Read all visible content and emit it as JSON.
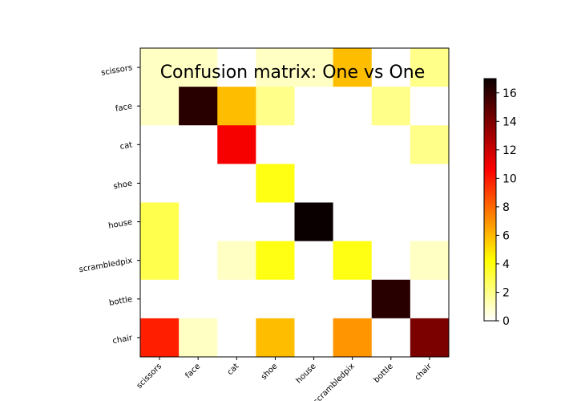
{
  "chart_data": {
    "type": "heatmap",
    "title": "Confusion matrix: One vs One",
    "colormap": "hot_r",
    "row_labels": [
      "scissors",
      "face",
      "cat",
      "shoe",
      "house",
      "scrambledpix",
      "bottle",
      "chair"
    ],
    "col_labels": [
      "scissors",
      "face",
      "cat",
      "shoe",
      "house",
      "scrambledpix",
      "bottle",
      "chair"
    ],
    "matrix": [
      [
        1,
        1,
        0,
        1,
        1,
        6,
        0,
        2
      ],
      [
        1,
        16,
        6,
        2,
        0,
        0,
        2,
        0
      ],
      [
        0,
        0,
        11,
        0,
        0,
        0,
        0,
        2
      ],
      [
        0,
        0,
        0,
        4,
        0,
        0,
        0,
        0
      ],
      [
        3,
        0,
        0,
        0,
        17,
        0,
        0,
        0
      ],
      [
        3,
        0,
        1,
        4,
        0,
        4,
        0,
        1
      ],
      [
        0,
        0,
        0,
        0,
        0,
        0,
        16,
        0
      ],
      [
        10,
        1,
        0,
        6,
        0,
        7,
        0,
        14
      ]
    ],
    "vmin": 0,
    "vmax": 17,
    "colorbar_ticks": [
      0,
      2,
      4,
      6,
      8,
      10,
      12,
      14,
      16
    ],
    "grid": false
  }
}
